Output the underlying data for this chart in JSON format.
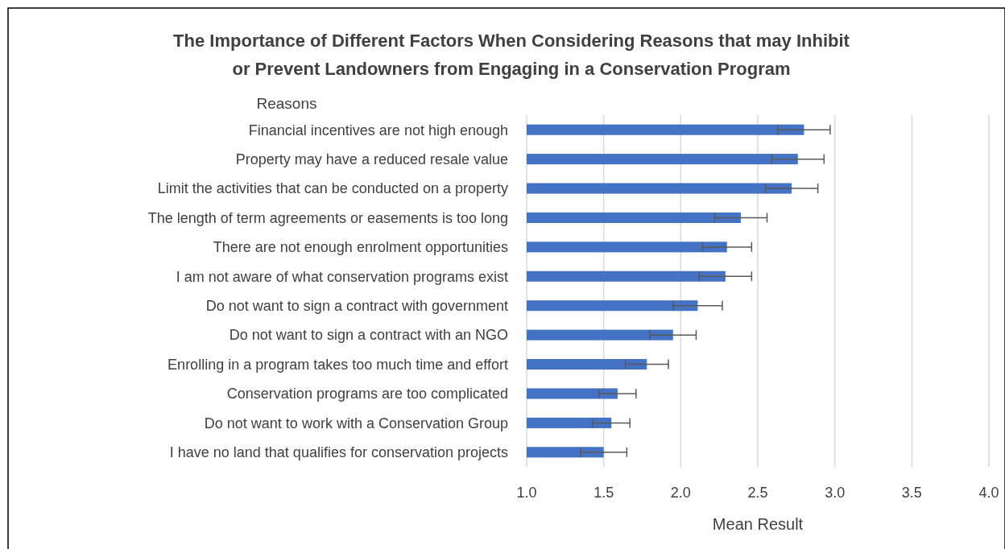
{
  "chart_data": {
    "type": "bar",
    "orientation": "horizontal",
    "title": "The Importance of Different Factors When Considering Reasons that may Inhibit\nor Prevent Landowners from Engaging in a Conservation Program",
    "xlabel": "Mean Result",
    "ylabel": "Reasons",
    "categories": [
      "Financial incentives are not high enough",
      "Property may have a reduced resale value",
      "Limit the activities that can be conducted on a property",
      "The length of term agreements or easements is too long",
      "There are not enough enrolment opportunities",
      "I am not aware of what conservation programs exist",
      "Do not want to sign a contract with government",
      "Do not want to sign a contract with an NGO",
      "Enrolling in a program takes too much time and effort",
      "Conservation programs are too complicated",
      "Do not want to work with a Conservation Group",
      "I have no land that qualifies for conservation projects"
    ],
    "values": [
      2.8,
      2.76,
      2.72,
      2.39,
      2.3,
      2.29,
      2.11,
      1.95,
      1.78,
      1.59,
      1.55,
      1.5
    ],
    "errors": [
      0.17,
      0.17,
      0.17,
      0.17,
      0.16,
      0.17,
      0.16,
      0.15,
      0.14,
      0.12,
      0.12,
      0.15
    ],
    "color": "#4472c4",
    "xlim": [
      1.0,
      4.0
    ],
    "xticks": [
      {
        "value": 1,
        "label": "1.0"
      },
      {
        "value": 1.5,
        "label": "1.5"
      },
      {
        "value": 2,
        "label": "2.0"
      },
      {
        "value": 2.5,
        "label": "2.5"
      },
      {
        "value": 3,
        "label": "3.0"
      },
      {
        "value": 3.5,
        "label": "3.5"
      },
      {
        "value": 4,
        "label": "4.0"
      }
    ],
    "grid": "x"
  }
}
